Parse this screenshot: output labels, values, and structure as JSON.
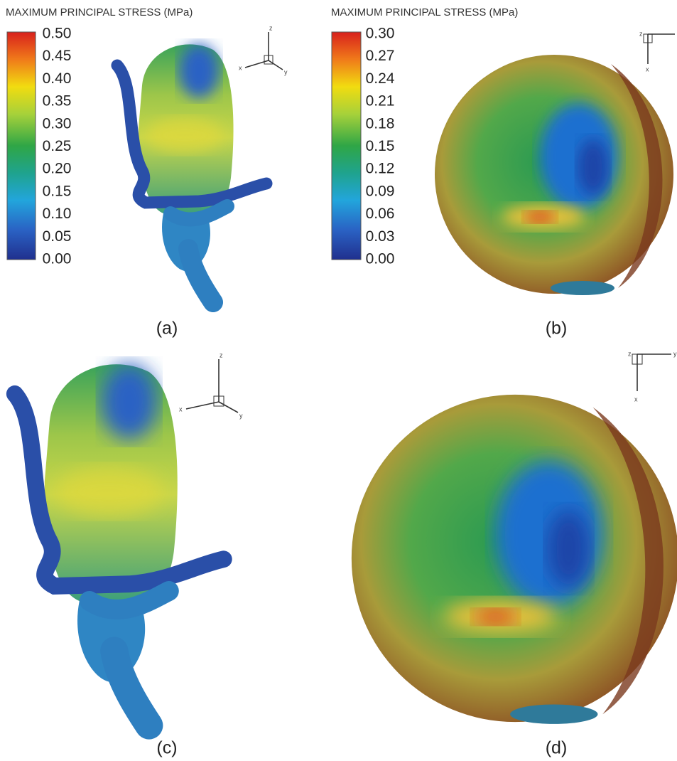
{
  "panels": [
    {
      "label": "(a)",
      "colorbar": {
        "title": "MAXIMUM PRINCIPAL STRESS (MPa)",
        "ticks": [
          "0.50",
          "0.45",
          "0.40",
          "0.35",
          "0.30",
          "0.25",
          "0.20",
          "0.15",
          "0.10",
          "0.05",
          "0.00"
        ]
      },
      "triad": [
        "z",
        "x",
        "y"
      ]
    },
    {
      "label": "(b)",
      "colorbar": {
        "title": "MAXIMUM PRINCIPAL STRESS (MPa)",
        "ticks": [
          "0.30",
          "0.27",
          "0.24",
          "0.21",
          "0.18",
          "0.15",
          "0.12",
          "0.09",
          "0.06",
          "0.03",
          "0.00"
        ]
      },
      "triad": [
        "z",
        "x"
      ]
    },
    {
      "label": "(c)",
      "triad": [
        "z",
        "x",
        "y"
      ]
    },
    {
      "label": "(d)",
      "triad": [
        "z",
        "x",
        "y"
      ]
    }
  ]
}
